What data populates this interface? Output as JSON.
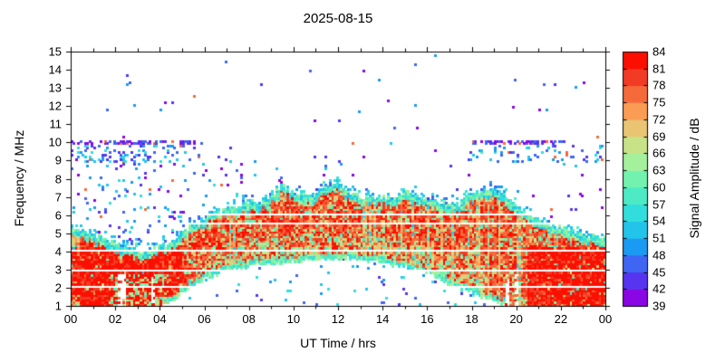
{
  "chart_data": {
    "type": "heatmap",
    "title": "2025-08-15",
    "xlabel": "UT Time / hrs",
    "ylabel": "Frequency / MHz",
    "x_range_hours": [
      0,
      24
    ],
    "x_tick_step_hours": 2,
    "x_minor_tick_hours": 1,
    "x_tick_labels": [
      "00",
      "02",
      "04",
      "06",
      "08",
      "10",
      "12",
      "14",
      "16",
      "18",
      "20",
      "22",
      "00"
    ],
    "y_range_mhz": [
      1,
      15
    ],
    "y_tick_labels": [
      "1",
      "2",
      "3",
      "4",
      "5",
      "6",
      "7",
      "8",
      "9",
      "10",
      "11",
      "12",
      "13",
      "14",
      "15"
    ],
    "grid": false,
    "background_db": null,
    "colorbar": {
      "label": "Signal Amplitude / dB",
      "min_db": 39,
      "max_db": 84,
      "step_db": 3,
      "tick_labels": [
        "39",
        "42",
        "45",
        "48",
        "51",
        "54",
        "57",
        "60",
        "63",
        "66",
        "69",
        "72",
        "75",
        "78",
        "81",
        "84"
      ],
      "colors": [
        "#8a06e4",
        "#5634f0",
        "#3f66f3",
        "#1b9af3",
        "#22c4ea",
        "#32dedd",
        "#4cebc6",
        "#72f2ae",
        "#a4f09c",
        "#c8e287",
        "#e9c573",
        "#fb9c55",
        "#f56a3b",
        "#f23b24",
        "#fb0f00"
      ]
    },
    "band": {
      "description": "strong broadband HF signal region; core amplitude 75-84 dB with cyan-green fringes 51-66 dB",
      "hours": [
        0,
        0.5,
        1,
        1.5,
        2,
        2.5,
        3,
        3.5,
        4,
        4.5,
        5,
        5.5,
        6,
        6.5,
        7,
        7.5,
        8,
        8.5,
        9,
        9.5,
        10,
        10.5,
        11,
        11.5,
        12,
        12.5,
        13,
        13.5,
        14,
        14.5,
        15,
        15.5,
        16,
        16.5,
        17,
        17.5,
        18,
        18.5,
        19,
        19.5,
        20,
        20.5,
        21,
        21.5,
        22,
        22.5,
        23,
        23.5,
        24
      ],
      "upper_mhz": [
        5.3,
        5.2,
        5.0,
        4.7,
        4.45,
        4.2,
        4.05,
        4.1,
        4.3,
        4.6,
        5.0,
        5.5,
        5.9,
        6.2,
        6.4,
        6.5,
        6.6,
        6.8,
        7.1,
        7.7,
        7.3,
        7.0,
        7.2,
        7.6,
        7.8,
        7.3,
        7.0,
        7.1,
        7.0,
        7.05,
        7.25,
        7.15,
        6.9,
        6.7,
        6.6,
        6.7,
        7.2,
        7.5,
        7.5,
        7.1,
        6.6,
        6.1,
        5.8,
        5.5,
        5.3,
        5.1,
        5.0,
        4.9,
        4.8
      ],
      "lower_mhz": [
        1.0,
        1.0,
        1.0,
        1.0,
        1.0,
        1.0,
        1.0,
        1.0,
        1.0,
        1.2,
        1.7,
        2.1,
        2.5,
        2.75,
        2.9,
        3.05,
        3.2,
        3.3,
        3.35,
        3.4,
        3.45,
        3.5,
        3.5,
        3.55,
        3.6,
        3.6,
        3.55,
        3.5,
        3.4,
        3.25,
        3.1,
        2.95,
        2.8,
        2.5,
        2.2,
        1.95,
        1.7,
        1.45,
        1.2,
        1.05,
        1.0,
        1.0,
        1.0,
        1.0,
        1.0,
        1.0,
        1.0,
        1.0,
        1.0
      ],
      "fringe_mhz": 0.45,
      "fringe_db": [
        51,
        66
      ],
      "core_db": [
        75,
        84
      ]
    },
    "quiet_lines_mhz": [
      6.05,
      5.62,
      4.02,
      2.9,
      2.05
    ],
    "speckle_bands": [
      {
        "name": "hf-interference-row",
        "freq_mhz": [
          9.9,
          10.15
        ],
        "hours": [
          [
            0,
            5.9
          ],
          [
            18.0,
            22.2
          ]
        ],
        "density": 0.45,
        "db": [
          39,
          48
        ]
      },
      {
        "name": "hf-cyan-cloud",
        "freq_mhz": [
          8.85,
          9.9
        ],
        "hours": [
          [
            0,
            5.6
          ],
          [
            17.8,
            24
          ]
        ],
        "density": 0.14,
        "db": [
          42,
          58
        ]
      },
      {
        "name": "morning-mid-noise",
        "freq_mhz": [
          4.3,
          9.35
        ],
        "hours": [
          [
            0,
            8.3
          ]
        ],
        "density": 0.045,
        "db": [
          39,
          56
        ]
      },
      {
        "name": "background-noise",
        "freq_mhz": [
          1,
          10.1
        ],
        "hours": [
          [
            0,
            24
          ]
        ],
        "density": 0.012,
        "db": [
          39,
          55
        ]
      },
      {
        "name": "upper-sparse",
        "freq_mhz": [
          10.1,
          15
        ],
        "hours": [
          [
            0,
            24
          ]
        ],
        "density": 0.004,
        "db": [
          39,
          51
        ]
      },
      {
        "name": "under-arch-noise",
        "freq_mhz": [
          1,
          3.6
        ],
        "hours": [
          [
            4.5,
            20
          ]
        ],
        "density": 0.022,
        "db": [
          42,
          57
        ]
      }
    ],
    "dropouts": [
      {
        "name": "evening-low-freq-streaks",
        "freq_mhz": [
          1,
          2.7
        ],
        "hours": [
          19.2,
          21.4
        ],
        "density": 0.3
      },
      {
        "name": "early-morning-weak-patch",
        "freq_mhz": [
          1,
          2.7
        ],
        "hours": [
          1.8,
          4.4
        ],
        "density": 0.18
      }
    ]
  }
}
